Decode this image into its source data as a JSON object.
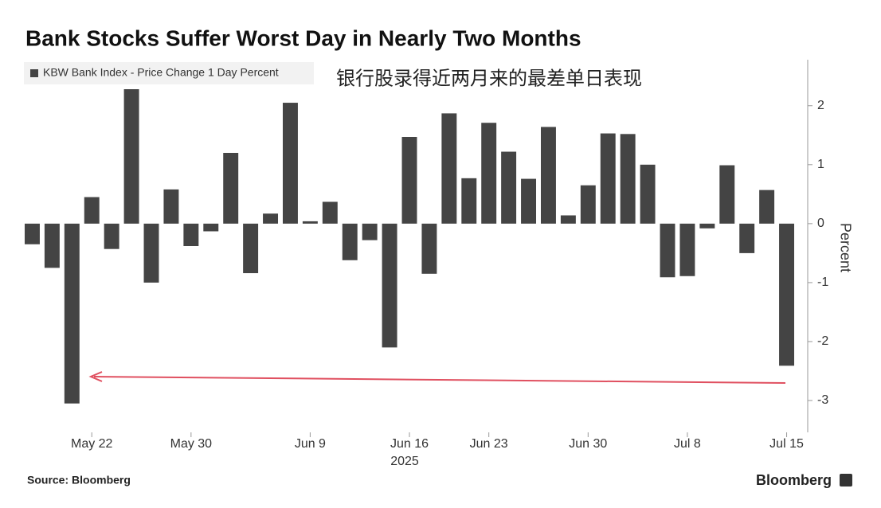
{
  "chart_data": {
    "type": "bar",
    "title": "Bank Stocks Suffer Worst Day in Nearly Two Months",
    "series": [
      {
        "name": "KBW Bank Index - Price Change 1 Day Percent",
        "color": "#444444",
        "values": [
          -0.35,
          -0.75,
          -3.05,
          0.45,
          -0.43,
          2.28,
          -1.0,
          0.58,
          -0.38,
          -0.13,
          1.2,
          -0.84,
          0.17,
          2.05,
          0.04,
          0.37,
          -0.62,
          -0.28,
          -2.1,
          1.47,
          -0.85,
          1.87,
          0.77,
          1.71,
          1.22,
          0.76,
          1.64,
          0.14,
          0.65,
          1.53,
          1.52,
          1.0,
          -0.91,
          -0.89,
          -0.08,
          0.99,
          -0.5,
          0.57,
          -2.41
        ]
      }
    ],
    "categories": [
      null,
      null,
      null,
      "May 22",
      null,
      null,
      null,
      null,
      "May 30",
      null,
      null,
      null,
      null,
      null,
      "Jun 9",
      null,
      null,
      null,
      null,
      "Jun 16",
      null,
      null,
      null,
      "Jun 23",
      null,
      null,
      null,
      null,
      "Jun 30",
      null,
      null,
      null,
      null,
      "Jul 8",
      null,
      null,
      null,
      null,
      "Jul 15"
    ],
    "year_label": "2025",
    "annotation": "银行股录得近两月来的最差单日表现",
    "ylabel": "Percent",
    "ylim": [
      -3.54,
      2.78
    ],
    "yticks": [
      2,
      1,
      0,
      -1,
      -2,
      -3
    ],
    "source": "Source: Bloomberg",
    "brand": "Bloomberg"
  }
}
